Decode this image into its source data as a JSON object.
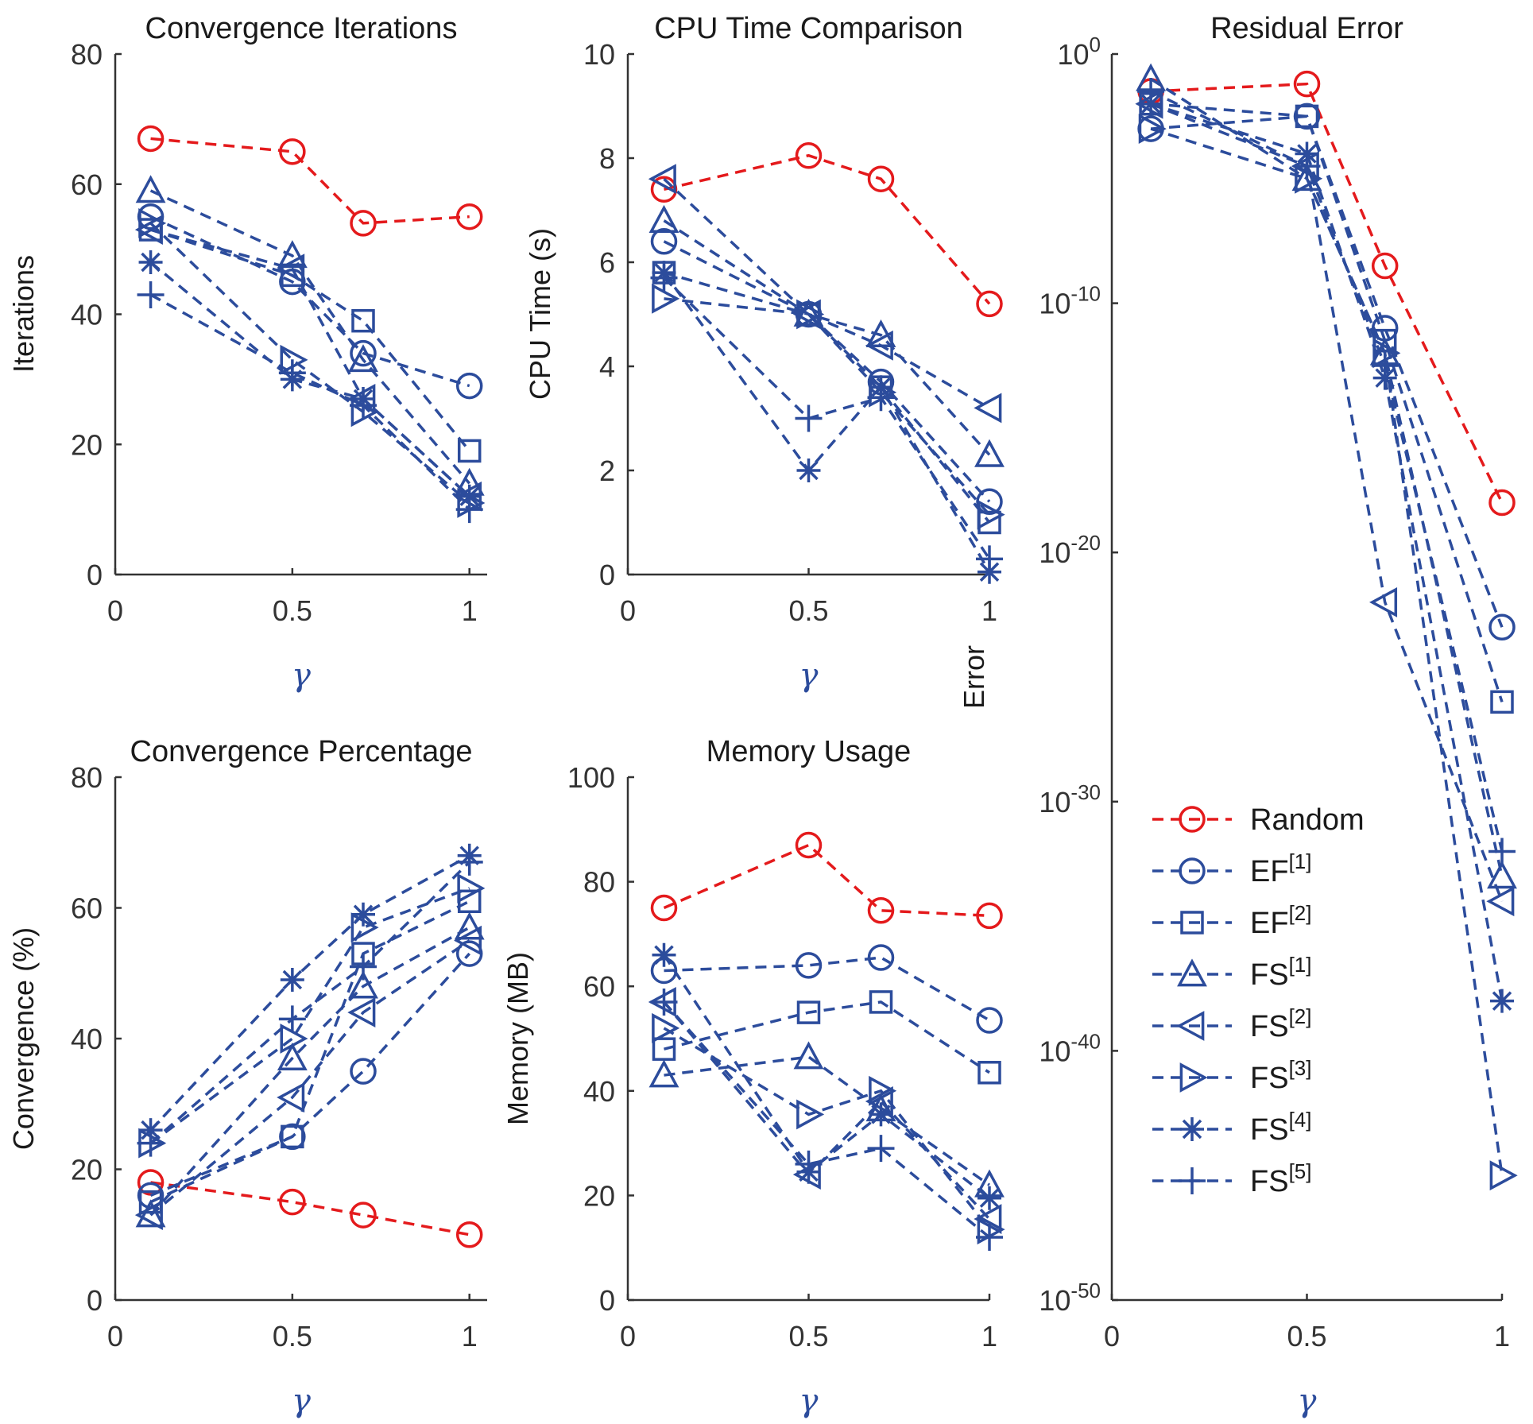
{
  "colors": {
    "random": "#e41a1c",
    "blue": "#2c4c9c",
    "axis": "#333333"
  },
  "chart_data": [
    {
      "id": "iter",
      "type": "line",
      "title": "Convergence Iterations",
      "xlabel": "γ",
      "ylabel": "Iterations",
      "xlim": [
        0,
        1.05
      ],
      "ylim": [
        0,
        80
      ],
      "yscale": "linear",
      "xticks": [
        0,
        0.5,
        1
      ],
      "xtick_labels": [
        "0",
        "0.5",
        "1"
      ],
      "yticks": [
        0,
        20,
        40,
        60,
        80
      ],
      "ytick_labels": [
        "0",
        "20",
        "40",
        "60",
        "80"
      ],
      "x": [
        0.1,
        0.5,
        0.7,
        1
      ],
      "series": [
        {
          "name": "Random",
          "marker": "circle",
          "color": "red",
          "values": [
            67,
            65,
            54,
            55
          ]
        },
        {
          "name": "EF[1]",
          "marker": "circle",
          "color": "blue",
          "values": [
            55,
            45,
            34,
            29
          ]
        },
        {
          "name": "EF[2]",
          "marker": "square",
          "color": "blue",
          "values": [
            53,
            46,
            39,
            19
          ]
        },
        {
          "name": "FS[1]",
          "marker": "triangle-up",
          "color": "blue",
          "values": [
            59,
            49,
            33,
            14
          ]
        },
        {
          "name": "FS[2]",
          "marker": "triangle-left",
          "color": "blue",
          "values": [
            53,
            47,
            27,
            12
          ]
        },
        {
          "name": "FS[3]",
          "marker": "triangle-right",
          "color": "blue",
          "values": [
            54,
            33,
            25,
            11
          ]
        },
        {
          "name": "FS[4]",
          "marker": "asterisk",
          "color": "blue",
          "values": [
            48,
            30,
            27,
            12
          ]
        },
        {
          "name": "FS[5]",
          "marker": "plus",
          "color": "blue",
          "values": [
            43,
            31,
            26,
            10
          ]
        }
      ]
    },
    {
      "id": "cpu",
      "type": "line",
      "title": "CPU Time Comparison",
      "xlabel": "γ",
      "ylabel": "CPU Time (s)",
      "xlim": [
        0,
        1.0
      ],
      "ylim": [
        0,
        10
      ],
      "yscale": "linear",
      "xticks": [
        0,
        0.5,
        1
      ],
      "xtick_labels": [
        "0",
        "0.5",
        "1"
      ],
      "yticks": [
        0,
        2,
        4,
        6,
        8,
        10
      ],
      "ytick_labels": [
        "0",
        "2",
        "4",
        "6",
        "8",
        "10"
      ],
      "x": [
        0.1,
        0.5,
        0.7,
        1
      ],
      "series": [
        {
          "name": "Random",
          "marker": "circle",
          "color": "red",
          "values": [
            7.4,
            8.05,
            7.6,
            5.2
          ]
        },
        {
          "name": "EF[1]",
          "marker": "circle",
          "color": "blue",
          "values": [
            6.4,
            5.0,
            3.7,
            1.4
          ]
        },
        {
          "name": "EF[2]",
          "marker": "square",
          "color": "blue",
          "values": [
            5.8,
            5.0,
            3.6,
            1.0
          ]
        },
        {
          "name": "FS[1]",
          "marker": "triangle-up",
          "color": "blue",
          "values": [
            6.8,
            5.0,
            4.6,
            2.3
          ]
        },
        {
          "name": "FS[2]",
          "marker": "triangle-left",
          "color": "blue",
          "values": [
            7.6,
            5.0,
            4.4,
            3.2
          ]
        },
        {
          "name": "FS[3]",
          "marker": "triangle-right",
          "color": "blue",
          "values": [
            5.3,
            5.0,
            3.5,
            1.15
          ]
        },
        {
          "name": "FS[4]",
          "marker": "asterisk",
          "color": "blue",
          "values": [
            5.8,
            2.0,
            3.6,
            0.05
          ]
        },
        {
          "name": "FS[5]",
          "marker": "plus",
          "color": "blue",
          "values": [
            5.7,
            3.0,
            3.4,
            0.3
          ]
        }
      ]
    },
    {
      "id": "conv",
      "type": "line",
      "title": "Convergence Percentage",
      "xlabel": "γ",
      "ylabel": "Convergence (%)",
      "xlim": [
        0,
        1.05
      ],
      "ylim": [
        0,
        80
      ],
      "yscale": "linear",
      "xticks": [
        0,
        0.5,
        1
      ],
      "xtick_labels": [
        "0",
        "0.5",
        "1"
      ],
      "yticks": [
        0,
        20,
        40,
        60,
        80
      ],
      "ytick_labels": [
        "0",
        "20",
        "40",
        "60",
        "80"
      ],
      "x": [
        0.1,
        0.5,
        0.7,
        1
      ],
      "series": [
        {
          "name": "Random",
          "marker": "circle",
          "color": "red",
          "values": [
            18,
            15,
            13,
            10
          ]
        },
        {
          "name": "EF[1]",
          "marker": "circle",
          "color": "blue",
          "values": [
            16,
            25,
            35,
            53
          ]
        },
        {
          "name": "EF[2]",
          "marker": "square",
          "color": "blue",
          "values": [
            15,
            25,
            53,
            61
          ]
        },
        {
          "name": "FS[1]",
          "marker": "triangle-up",
          "color": "blue",
          "values": [
            13,
            37,
            48,
            57
          ]
        },
        {
          "name": "FS[2]",
          "marker": "triangle-left",
          "color": "blue",
          "values": [
            13,
            31,
            44,
            55
          ]
        },
        {
          "name": "FS[3]",
          "marker": "triangle-right",
          "color": "blue",
          "values": [
            24,
            40,
            57,
            63
          ]
        },
        {
          "name": "FS[4]",
          "marker": "asterisk",
          "color": "blue",
          "values": [
            26,
            49,
            59,
            68
          ]
        },
        {
          "name": "FS[5]",
          "marker": "plus",
          "color": "blue",
          "values": [
            24,
            43,
            51,
            67
          ]
        }
      ]
    },
    {
      "id": "mem",
      "type": "line",
      "title": "Memory Usage",
      "xlabel": "γ",
      "ylabel": "Memory (MB)",
      "xlim": [
        0,
        1.0
      ],
      "ylim": [
        0,
        100
      ],
      "yscale": "linear",
      "xticks": [
        0,
        0.5,
        1
      ],
      "xtick_labels": [
        "0",
        "0.5",
        "1"
      ],
      "yticks": [
        0,
        20,
        40,
        60,
        80,
        100
      ],
      "ytick_labels": [
        "0",
        "20",
        "40",
        "60",
        "80",
        "100"
      ],
      "x": [
        0.1,
        0.5,
        0.7,
        1
      ],
      "series": [
        {
          "name": "Random",
          "marker": "circle",
          "color": "red",
          "values": [
            75,
            87,
            74.5,
            73.5
          ]
        },
        {
          "name": "EF[1]",
          "marker": "circle",
          "color": "blue",
          "values": [
            63,
            64,
            65.5,
            53.5
          ]
        },
        {
          "name": "EF[2]",
          "marker": "square",
          "color": "blue",
          "values": [
            48,
            55,
            57,
            43.5
          ]
        },
        {
          "name": "FS[1]",
          "marker": "triangle-up",
          "color": "blue",
          "values": [
            43,
            46.5,
            36.5,
            22
          ]
        },
        {
          "name": "FS[2]",
          "marker": "triangle-left",
          "color": "blue",
          "values": [
            57,
            24,
            38,
            15.5
          ]
        },
        {
          "name": "FS[3]",
          "marker": "triangle-right",
          "color": "blue",
          "values": [
            52,
            35.5,
            40,
            13.5
          ]
        },
        {
          "name": "FS[4]",
          "marker": "asterisk",
          "color": "blue",
          "values": [
            66,
            24.5,
            35.5,
            19.5
          ]
        },
        {
          "name": "FS[5]",
          "marker": "plus",
          "color": "blue",
          "values": [
            57,
            26,
            29,
            12
          ]
        }
      ]
    },
    {
      "id": "err",
      "type": "line",
      "title": "Residual Error",
      "xlabel": "γ",
      "ylabel": "Error",
      "xlim": [
        0,
        1.0
      ],
      "ylim": [
        -50,
        0
      ],
      "yscale": "log10 exponent",
      "xticks": [
        0,
        0.5,
        1
      ],
      "xtick_labels": [
        "0",
        "0.5",
        "1"
      ],
      "yticks": [
        0,
        -10,
        -20,
        -30,
        -40,
        -50
      ],
      "ytick_labels": [
        {
          "base": "10",
          "exp": "0"
        },
        {
          "base": "10",
          "exp": "-10"
        },
        {
          "base": "10",
          "exp": "-20"
        },
        {
          "base": "10",
          "exp": "-30"
        },
        {
          "base": "10",
          "exp": "-40"
        },
        {
          "base": "10",
          "exp": "-50"
        }
      ],
      "x": [
        0.1,
        0.5,
        0.7,
        1
      ],
      "note": "values are log10(error)",
      "series": [
        {
          "name": "Random",
          "marker": "circle",
          "color": "red",
          "values": [
            -1.5,
            -1.2,
            -8.5,
            -18
          ]
        },
        {
          "name": "EF[1]",
          "marker": "circle",
          "color": "blue",
          "values": [
            -3,
            -2.5,
            -11,
            -23
          ]
        },
        {
          "name": "EF[2]",
          "marker": "square",
          "color": "blue",
          "values": [
            -2,
            -2.5,
            -11.5,
            -26
          ]
        },
        {
          "name": "FS[1]",
          "marker": "triangle-up",
          "color": "blue",
          "values": [
            -1,
            -5,
            -12,
            -33
          ]
        },
        {
          "name": "FS[2]",
          "marker": "triangle-left",
          "color": "blue",
          "values": [
            -2,
            -4.5,
            -22,
            -34
          ]
        },
        {
          "name": "FS[3]",
          "marker": "triangle-right",
          "color": "blue",
          "values": [
            -3,
            -5,
            -12,
            -45
          ]
        },
        {
          "name": "FS[4]",
          "marker": "asterisk",
          "color": "blue",
          "values": [
            -2,
            -4,
            -13,
            -38
          ]
        },
        {
          "name": "FS[5]",
          "marker": "plus",
          "color": "blue",
          "values": [
            -1.5,
            -4.5,
            -12.5,
            -32
          ]
        }
      ]
    }
  ],
  "legend": {
    "position": "lower-left of Residual Error panel",
    "entries": [
      {
        "base": "Random",
        "sup": "",
        "marker": "circle",
        "color": "red"
      },
      {
        "base": "EF",
        "sup": "[1]",
        "marker": "circle",
        "color": "blue"
      },
      {
        "base": "EF",
        "sup": "[2]",
        "marker": "square",
        "color": "blue"
      },
      {
        "base": "FS",
        "sup": "[1]",
        "marker": "triangle-up",
        "color": "blue"
      },
      {
        "base": "FS",
        "sup": "[2]",
        "marker": "triangle-left",
        "color": "blue"
      },
      {
        "base": "FS",
        "sup": "[3]",
        "marker": "triangle-right",
        "color": "blue"
      },
      {
        "base": "FS",
        "sup": "[4]",
        "marker": "asterisk",
        "color": "blue"
      },
      {
        "base": "FS",
        "sup": "[5]",
        "marker": "plus",
        "color": "blue"
      }
    ]
  }
}
